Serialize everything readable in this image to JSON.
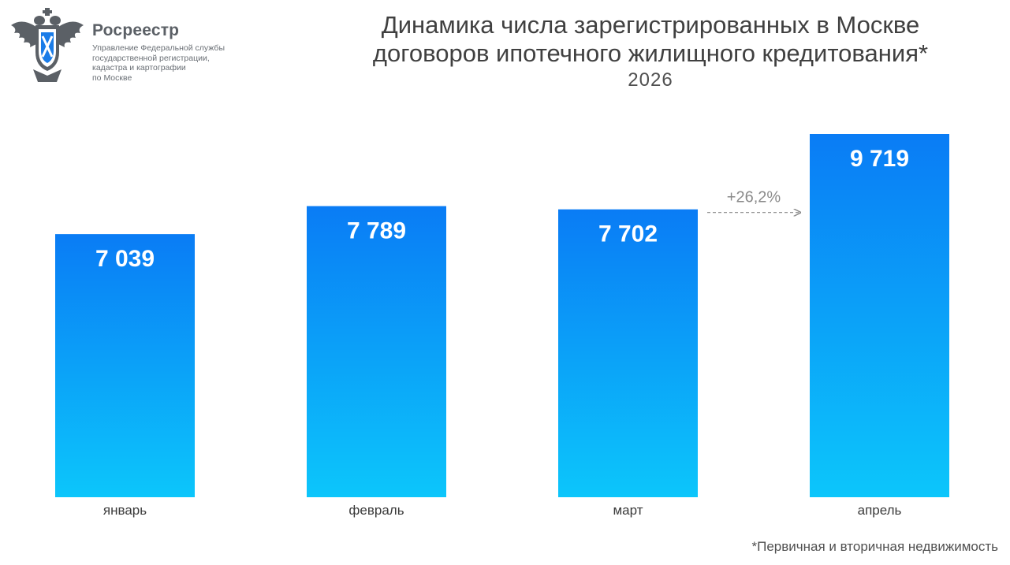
{
  "header": {
    "org_name": "Росреестр",
    "org_sub_1": "Управление Федеральной службы",
    "org_sub_2": "государственной регистрации,",
    "org_sub_3": "кадастра и картографии",
    "org_sub_4": "по Москве"
  },
  "footnote": "*Первичная и вторичная недвижимость",
  "colors": {
    "bar_top": "#0a7cf5",
    "bar_bottom": "#0cc6fb",
    "annotation": "#8a8a8a",
    "emblem": "#5b6066"
  },
  "chart_data": {
    "type": "bar",
    "title_line1": "Динамика числа зарегистрированных в Москве",
    "title_line2": "договоров ипотечного жилищного кредитования*",
    "subtitle": "2026",
    "categories": [
      "январь",
      "февраль",
      "март",
      "апрель"
    ],
    "values": [
      7039,
      7789,
      7702,
      9719
    ],
    "value_labels": [
      "7 039",
      "7 789",
      "7 702",
      "9 719"
    ],
    "annotation": {
      "text": "+26,2%",
      "from": "март",
      "to": "апрель"
    },
    "ylim": [
      0,
      9719
    ],
    "grid": false,
    "legend": "none"
  }
}
